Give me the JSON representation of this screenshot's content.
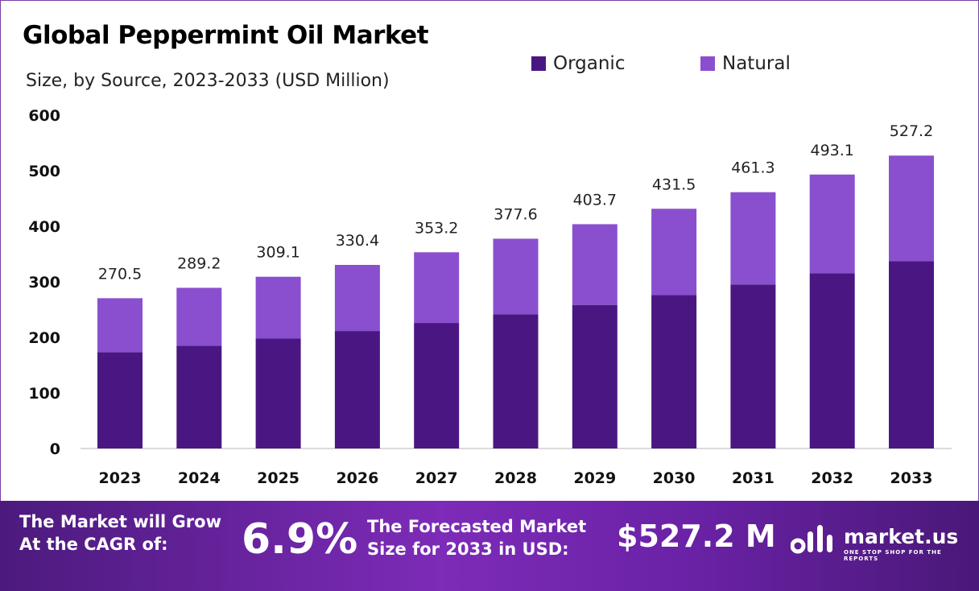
{
  "title": "Global Peppermint Oil Market",
  "subtitle": "Size, by Source, 2023-2033 (USD Million)",
  "legend": [
    {
      "label": "Organic",
      "color": "#4a1782"
    },
    {
      "label": "Natural",
      "color": "#8a4fcf"
    }
  ],
  "chart_data": {
    "type": "bar",
    "stacked": true,
    "categories": [
      "2023",
      "2024",
      "2025",
      "2026",
      "2027",
      "2028",
      "2029",
      "2030",
      "2031",
      "2032",
      "2033"
    ],
    "series": [
      {
        "name": "Organic",
        "color": "#4a1782",
        "values": [
          173.1,
          185.1,
          197.8,
          211.5,
          226.0,
          241.7,
          258.4,
          276.2,
          295.2,
          315.6,
          337.4
        ]
      },
      {
        "name": "Natural",
        "color": "#8a4fcf",
        "values": [
          97.4,
          104.1,
          111.3,
          118.9,
          127.2,
          135.9,
          145.3,
          155.3,
          166.1,
          177.5,
          189.8
        ]
      }
    ],
    "totals": [
      "270.5",
      "289.2",
      "309.1",
      "330.4",
      "353.2",
      "377.6",
      "403.7",
      "431.5",
      "461.3",
      "493.1",
      "527.2"
    ],
    "yticks": [
      "0",
      "100",
      "200",
      "300",
      "400",
      "500",
      "600"
    ],
    "ylim": [
      0,
      600
    ],
    "grid": false,
    "legend_position": "top-right"
  },
  "footer": {
    "cagr_label_1": "The Market will Grow",
    "cagr_label_2": "At the CAGR of:",
    "cagr_value": "6.9%",
    "forecast_label_1": "The Forecasted Market",
    "forecast_label_2": "Size for 2033 in USD:",
    "forecast_value": "$527.2 M",
    "logo_text": "market.us",
    "logo_tagline": "ONE STOP SHOP FOR THE REPORTS"
  }
}
